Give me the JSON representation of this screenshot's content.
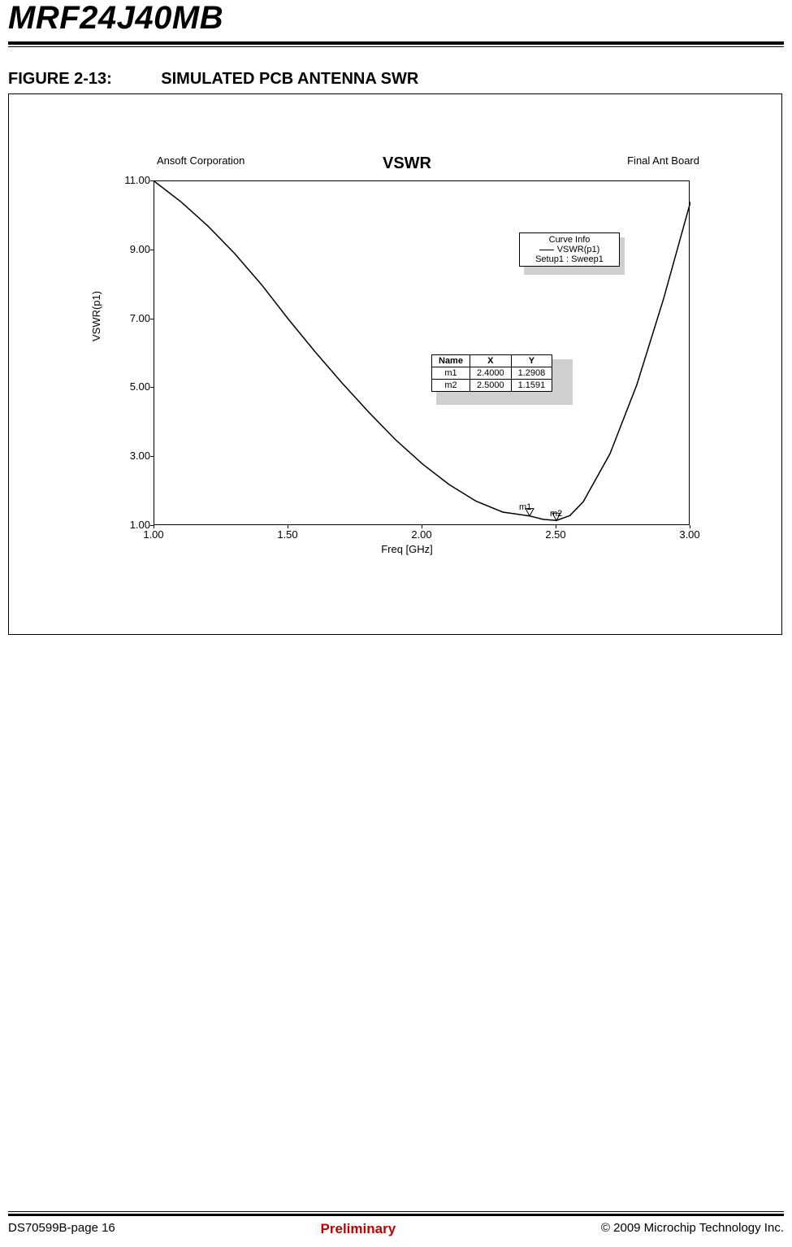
{
  "document": {
    "product_title": "MRF24J40MB",
    "figure_number": "FIGURE 2-13:",
    "figure_title": "SIMULATED PCB ANTENNA SWR"
  },
  "footer": {
    "left": "DS70599B-page 16",
    "center": "Preliminary",
    "right": "© 2009 Microchip Technology Inc."
  },
  "chart": {
    "type": "line",
    "title": "VSWR",
    "title_fontsize": 20,
    "software_label": "Ansoft Corporation",
    "design_label": "Final Ant Board",
    "x_axis_label": "Freq [GHz]",
    "y_axis_label": "VSWR(p1)",
    "label_fontsize": 13,
    "xlim": [
      1.0,
      3.0
    ],
    "x_ticks": [
      1.0,
      1.5,
      2.0,
      2.5,
      3.0
    ],
    "x_tick_labels": [
      "1.00",
      "1.50",
      "2.00",
      "2.50",
      "3.00"
    ],
    "ylim": [
      1.0,
      11.0
    ],
    "y_ticks": [
      1.0,
      3.0,
      5.0,
      7.0,
      9.0,
      11.0
    ],
    "y_tick_labels": [
      "1.00",
      "3.00",
      "5.00",
      "7.00",
      "9.00",
      "11.00"
    ],
    "grid": false,
    "background_color": "#ffffff",
    "axis_color": "#000000",
    "line_color": "#000000",
    "line_width": 1.5,
    "series_x": [
      1.0,
      1.1,
      1.2,
      1.3,
      1.4,
      1.5,
      1.6,
      1.7,
      1.8,
      1.9,
      2.0,
      2.1,
      2.2,
      2.3,
      2.4,
      2.45,
      2.5,
      2.55,
      2.6,
      2.7,
      2.8,
      2.9,
      3.0
    ],
    "series_y": [
      11.0,
      10.4,
      9.7,
      8.9,
      8.0,
      7.0,
      6.05,
      5.15,
      4.3,
      3.5,
      2.8,
      2.2,
      1.72,
      1.4,
      1.29,
      1.19,
      1.16,
      1.3,
      1.7,
      3.1,
      5.1,
      7.6,
      10.4
    ],
    "markers": {
      "m1": {
        "label": "m1",
        "x": 2.4,
        "y": 1.2908
      },
      "m2": {
        "label": "m2",
        "x": 2.5,
        "y": 1.1591
      }
    },
    "legend": {
      "title": "Curve Info",
      "series_name": "VSWR(p1)",
      "setup_text": "Setup1 : Sweep1",
      "border_color": "#000000",
      "shadow_color": "#cfcfcf",
      "fontsize": 11
    },
    "marker_table": {
      "columns": [
        "Name",
        "X",
        "Y"
      ],
      "rows": [
        [
          "m1",
          "2.4000",
          "1.2908"
        ],
        [
          "m2",
          "2.5000",
          "1.1591"
        ]
      ],
      "border_color": "#000000",
      "shadow_color": "#cfcfcf",
      "fontsize": 11
    }
  }
}
